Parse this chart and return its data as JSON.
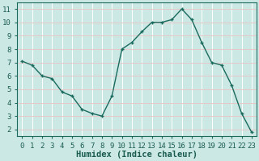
{
  "x": [
    0,
    1,
    2,
    3,
    4,
    5,
    6,
    7,
    8,
    9,
    10,
    11,
    12,
    13,
    14,
    15,
    16,
    17,
    18,
    19,
    20,
    21,
    22,
    23
  ],
  "y": [
    7.1,
    6.8,
    6.0,
    5.8,
    4.8,
    4.5,
    3.5,
    3.2,
    3.0,
    4.5,
    8.0,
    8.5,
    9.3,
    10.0,
    10.0,
    10.2,
    11.0,
    10.2,
    8.5,
    7.0,
    6.8,
    5.3,
    3.2,
    1.8
  ],
  "line_color": "#1a6b5e",
  "marker": "+",
  "background_color": "#cce8e4",
  "grid_color_major": "#e8c8c8",
  "grid_color_minor": "#ffffff",
  "xlabel": "Humidex (Indice chaleur)",
  "ylim": [
    1.5,
    11.5
  ],
  "xlim": [
    -0.5,
    23.5
  ],
  "yticks": [
    2,
    3,
    4,
    5,
    6,
    7,
    8,
    9,
    10,
    11
  ],
  "xticks": [
    0,
    1,
    2,
    3,
    4,
    5,
    6,
    7,
    8,
    9,
    10,
    11,
    12,
    13,
    14,
    15,
    16,
    17,
    18,
    19,
    20,
    21,
    22,
    23
  ],
  "tick_label_fontsize": 6.5,
  "xlabel_fontsize": 7.5,
  "line_width": 1.0,
  "marker_size": 3.5,
  "marker_edge_width": 1.0
}
